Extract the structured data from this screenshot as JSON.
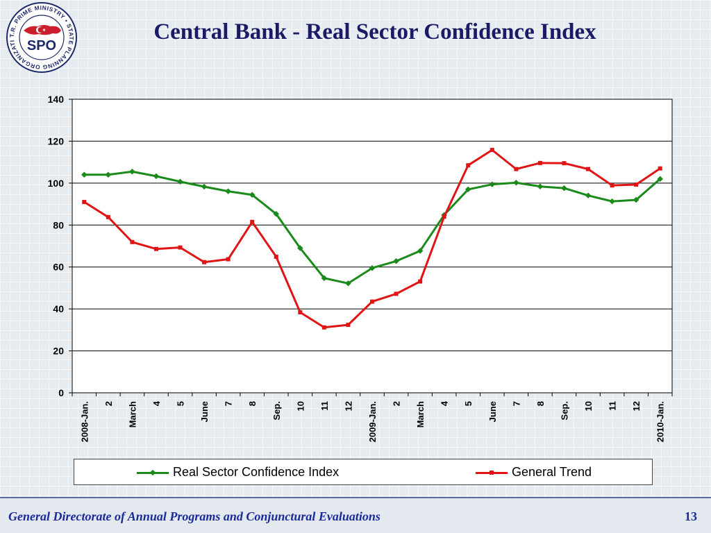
{
  "slide": {
    "title": "Central Bank - Real Sector Confidence Index",
    "footer": "General Directorate of Annual Programs and Conjunctural Evaluations",
    "page_number": "13"
  },
  "logo": {
    "ring_text": "T.R. PRIME MINISTRY • STATE PLANNING ORGANIZATION •",
    "abbr": "SPO",
    "colors": {
      "red": "#cc1f2e",
      "navy": "#1c2a6b"
    }
  },
  "chart_data": {
    "type": "line",
    "title": "",
    "xlabel": "",
    "ylabel": "",
    "ylim": [
      0,
      140
    ],
    "yticks": [
      0,
      20,
      40,
      60,
      80,
      100,
      120,
      140
    ],
    "grid": true,
    "legend_position": "bottom",
    "categories": [
      "2008-Jan.",
      "2",
      "March",
      "4",
      "5",
      "June",
      "7",
      "8",
      "Sep.",
      "10",
      "11",
      "12",
      "2009-Jan.",
      "2",
      "March",
      "4",
      "5",
      "June",
      "7",
      "8",
      "Sep.",
      "10",
      "11",
      "12",
      "2010-Jan."
    ],
    "series": [
      {
        "name": "Real Sector Confidence Index",
        "color": "#1a8a1a",
        "marker": "diamond",
        "values": [
          104,
          104,
          105.5,
          103.3,
          100.7,
          98.3,
          96.1,
          94.4,
          85.3,
          69.0,
          54.7,
          52.2,
          59.5,
          62.8,
          67.7,
          84.8,
          97.0,
          99.4,
          100.2,
          98.4,
          97.6,
          94.1,
          91.3,
          92.0,
          102.0
        ]
      },
      {
        "name": "General Trend",
        "color": "#e01414",
        "marker": "square",
        "values": [
          91.0,
          83.8,
          71.9,
          68.6,
          69.3,
          62.3,
          63.7,
          81.5,
          64.9,
          38.4,
          31.2,
          32.4,
          43.5,
          47.2,
          53.1,
          84.0,
          108.5,
          115.8,
          106.7,
          109.6,
          109.5,
          106.7,
          98.9,
          99.3,
          107.0
        ]
      }
    ]
  }
}
